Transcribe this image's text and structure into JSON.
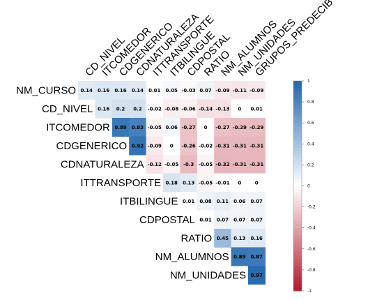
{
  "chart_data": {
    "type": "heatmap",
    "title": "",
    "layout": "upper-triangular",
    "rows": [
      "NM_CURSO",
      "CD_NIVEL",
      "ITCOMEDOR",
      "CDGENERICO",
      "CDNATURALEZA",
      "ITTRANSPORTE",
      "ITBILINGUE",
      "CDPOSTAL",
      "RATIO",
      "NM_ALUMNOS",
      "NM_UNIDADES"
    ],
    "columns": [
      "CD_NIVEL",
      "ITCOMEDOR",
      "CDGENERICO",
      "CDNATURALEZA",
      "ITTRANSPORTE",
      "ITBILINGUE",
      "CDPOSTAL",
      "RATIO",
      "NM_ALUMNOS",
      "NM_UNIDADES",
      "GRUPOS_PREDECIBLES"
    ],
    "column_labels_display": [
      "CD_NIVEL",
      "ITCOMEDOR",
      "CDGENERICO",
      "CDNATURALEZA",
      "ITTRANSPORTE",
      "ITBILINGUE",
      "CDPOSTAL",
      "RATIO",
      "NM_ALUMNOS",
      "NM_UNIDADES",
      "GRUPOS_PREDECIB"
    ],
    "values": [
      [
        0.14,
        0.16,
        0.16,
        0.14,
        0.01,
        0.05,
        -0.03,
        0.07,
        -0.09,
        -0.11,
        -0.09
      ],
      [
        null,
        0.16,
        0.2,
        0.2,
        -0.02,
        -0.08,
        -0.06,
        -0.14,
        -0.13,
        0,
        0.01
      ],
      [
        null,
        null,
        0.89,
        0.83,
        -0.05,
        0.06,
        -0.27,
        0,
        -0.27,
        -0.29,
        -0.29
      ],
      [
        null,
        null,
        null,
        0.92,
        -0.09,
        0,
        -0.26,
        -0.02,
        -0.31,
        -0.31,
        -0.31
      ],
      [
        null,
        null,
        null,
        null,
        -0.12,
        -0.05,
        -0.3,
        -0.05,
        -0.32,
        -0.31,
        -0.31
      ],
      [
        null,
        null,
        null,
        null,
        null,
        0.18,
        0.13,
        -0.05,
        -0.01,
        0,
        0
      ],
      [
        null,
        null,
        null,
        null,
        null,
        null,
        0.01,
        0.08,
        0.11,
        0.06,
        0.07
      ],
      [
        null,
        null,
        null,
        null,
        null,
        null,
        null,
        0.01,
        0.07,
        0.07,
        0.07
      ],
      [
        null,
        null,
        null,
        null,
        null,
        null,
        null,
        null,
        0.45,
        0.13,
        0.16
      ],
      [
        null,
        null,
        null,
        null,
        null,
        null,
        null,
        null,
        null,
        0.89,
        0.87
      ],
      [
        null,
        null,
        null,
        null,
        null,
        null,
        null,
        null,
        null,
        null,
        0.97
      ]
    ],
    "scale": {
      "min": -1,
      "max": 1,
      "low_color": "#b2182b",
      "mid_color": "#ffffff",
      "high_color": "#2166ac",
      "ticks": [
        "1",
        "0.8",
        "0.6",
        "0.4",
        "0.2",
        "0",
        "-0.2",
        "-0.4",
        "-0.6",
        "-0.8",
        "-1"
      ]
    },
    "legend_placement": "right",
    "grid": false
  }
}
